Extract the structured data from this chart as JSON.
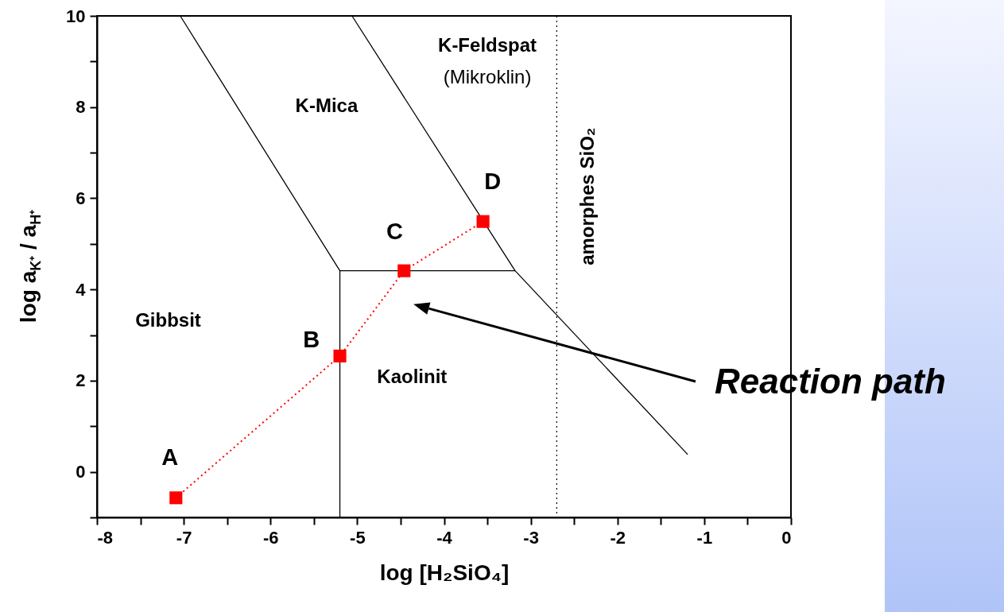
{
  "chart_data": {
    "type": "line",
    "xlabel": "log [H₂SiO₄]",
    "ylabel": "log a$_{K⁺}$ / a$_{H⁺}$",
    "xlim": [
      -8,
      0
    ],
    "ylim": [
      -1,
      10
    ],
    "xticks": [
      -8,
      {
        "value": -7.5,
        "label": null
      },
      -7,
      {
        "value": -6.5,
        "label": null
      },
      -6,
      {
        "value": -5.5,
        "label": null
      },
      -5,
      {
        "value": -4.5,
        "label": null
      },
      -4,
      {
        "value": -3.5,
        "label": null
      },
      -3,
      {
        "value": -2.5,
        "label": null
      },
      -2,
      {
        "value": -1.5,
        "label": null
      },
      -1,
      {
        "value": -0.5,
        "label": null
      },
      0
    ],
    "yticks": [
      {
        "value": -1,
        "label": null
      },
      0,
      {
        "value": 1,
        "label": null
      },
      2,
      {
        "value": 3,
        "label": null
      },
      4,
      {
        "value": 5,
        "label": null
      },
      6,
      {
        "value": 7,
        "label": null
      },
      8,
      {
        "value": 9,
        "label": null
      },
      10
    ],
    "grid": false,
    "series": [
      {
        "color": "#000000",
        "x": [
          -7.04,
          -5.2,
          -5.2
        ],
        "values": [
          10,
          4.41,
          -1
        ],
        "marker": "none",
        "line_style": "solid"
      },
      {
        "color": "#000000",
        "x": [
          -5.2,
          -3.18
        ],
        "values": [
          4.41,
          4.41
        ],
        "marker": "none",
        "line_style": "solid"
      },
      {
        "color": "#000000",
        "x": [
          -5.06,
          -3.18,
          -1.19
        ],
        "values": [
          10,
          4.41,
          0.38
        ],
        "marker": "none",
        "line_style": "solid"
      },
      {
        "color": "#ff0000",
        "x": [
          -7.09,
          -5.2,
          -4.46,
          -3.55
        ],
        "values": [
          -0.57,
          2.54,
          4.41,
          5.49
        ],
        "marker": "square",
        "line_style": "dotted"
      }
    ],
    "ref_lines": [
      {
        "axis": "x",
        "value": -2.7,
        "label": "amorphes SiO₂",
        "color": "#000000",
        "line_style": "dotted"
      }
    ],
    "annotations": [
      "Gibbsit",
      "K-Mica",
      "K-Feldspat",
      "(Mikroklin)",
      "Kaolinit",
      "A",
      "B",
      "C",
      "D",
      "Reaction path"
    ]
  }
}
